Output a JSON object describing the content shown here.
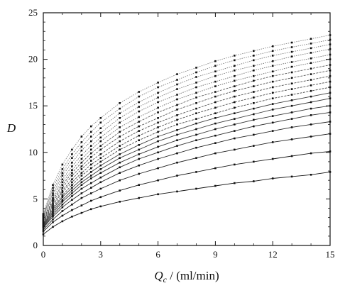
{
  "chart_data": {
    "type": "line",
    "ylabel": "D",
    "xlabel_var": "Q",
    "xlabel_sub": "c",
    "xlabel_unit": " / (ml/min)",
    "xlim": [
      0,
      15
    ],
    "ylim": [
      0,
      25
    ],
    "x_ticks": [
      0,
      3,
      6,
      9,
      12,
      15
    ],
    "y_ticks": [
      0,
      5,
      10,
      15,
      20,
      25
    ],
    "x_tick_labels": [
      "0",
      "3",
      "6",
      "9",
      "12",
      "15"
    ],
    "y_tick_labels": [
      "0",
      "5",
      "10",
      "15",
      "20",
      "25"
    ],
    "grid": false,
    "legend": "none",
    "x": [
      0,
      0.5,
      1,
      1.5,
      2,
      2.5,
      3,
      4,
      5,
      6,
      7,
      8,
      9,
      10,
      11,
      12,
      13,
      14,
      15
    ],
    "series": [
      {
        "values": [
          1.2,
          2.0,
          2.6,
          3.1,
          3.5,
          3.9,
          4.2,
          4.7,
          5.1,
          5.5,
          5.8,
          6.1,
          6.4,
          6.7,
          6.9,
          7.2,
          7.4,
          7.6,
          7.9
        ]
      },
      {
        "values": [
          1.5,
          2.5,
          3.2,
          3.8,
          4.3,
          4.8,
          5.2,
          5.9,
          6.5,
          7.0,
          7.5,
          7.9,
          8.3,
          8.7,
          9.0,
          9.3,
          9.6,
          9.9,
          10.1
        ]
      },
      {
        "values": [
          1.7,
          2.8,
          3.7,
          4.4,
          5.1,
          5.6,
          6.1,
          7.0,
          7.7,
          8.3,
          8.9,
          9.4,
          9.9,
          10.3,
          10.7,
          11.1,
          11.4,
          11.7,
          12.0
        ]
      },
      {
        "values": [
          1.9,
          3.1,
          4.1,
          4.9,
          5.6,
          6.2,
          6.8,
          7.8,
          8.6,
          9.3,
          9.9,
          10.5,
          11.0,
          11.5,
          11.9,
          12.3,
          12.7,
          13.0,
          13.3
        ]
      },
      {
        "values": [
          2.0,
          3.3,
          4.4,
          5.3,
          6.1,
          6.7,
          7.3,
          8.4,
          9.3,
          10.0,
          10.7,
          11.3,
          11.8,
          12.3,
          12.8,
          13.2,
          13.6,
          14.0,
          14.3
        ]
      },
      {
        "values": [
          2.1,
          3.5,
          4.7,
          5.6,
          6.5,
          7.2,
          7.8,
          8.9,
          9.8,
          10.6,
          11.3,
          11.9,
          12.5,
          13.0,
          13.5,
          13.9,
          14.3,
          14.7,
          15.0
        ]
      },
      {
        "values": [
          2.2,
          3.7,
          4.9,
          5.9,
          6.8,
          7.5,
          8.2,
          9.4,
          10.3,
          11.2,
          11.9,
          12.5,
          13.1,
          13.6,
          14.1,
          14.6,
          15.0,
          15.4,
          15.8
        ]
      },
      {
        "values": [
          2.3,
          3.9,
          5.2,
          6.2,
          7.1,
          7.9,
          8.6,
          9.8,
          10.8,
          11.7,
          12.4,
          13.1,
          13.7,
          14.2,
          14.7,
          15.2,
          15.6,
          16.0,
          16.4
        ]
      },
      {
        "values": [
          2.4,
          4.1,
          5.4,
          6.5,
          7.5,
          8.3,
          9.0,
          10.3,
          11.3,
          12.2,
          13.0,
          13.6,
          14.2,
          14.8,
          15.3,
          15.8,
          16.2,
          16.6,
          17.0
        ]
      },
      {
        "values": [
          2.5,
          4.3,
          5.7,
          6.8,
          7.8,
          8.7,
          9.4,
          10.7,
          11.8,
          12.7,
          13.5,
          14.2,
          14.8,
          15.4,
          15.9,
          16.4,
          16.8,
          17.2,
          17.6
        ]
      },
      {
        "values": [
          2.6,
          4.5,
          5.9,
          7.1,
          8.2,
          9.1,
          9.8,
          11.2,
          12.3,
          13.2,
          14.0,
          14.7,
          15.4,
          16.0,
          16.5,
          17.0,
          17.4,
          17.8,
          18.2
        ]
      },
      {
        "values": [
          2.7,
          4.7,
          6.2,
          7.5,
          8.5,
          9.5,
          10.3,
          11.7,
          12.8,
          13.7,
          14.6,
          15.3,
          16.0,
          16.6,
          17.1,
          17.6,
          18.0,
          18.4,
          18.8
        ]
      },
      {
        "values": [
          2.8,
          4.9,
          6.5,
          7.8,
          8.9,
          9.9,
          10.7,
          12.2,
          13.3,
          14.3,
          15.1,
          15.9,
          16.5,
          17.1,
          17.7,
          18.2,
          18.6,
          19.0,
          19.4
        ]
      },
      {
        "values": [
          2.9,
          5.1,
          6.8,
          8.1,
          9.3,
          10.3,
          11.2,
          12.7,
          13.8,
          14.8,
          15.7,
          16.4,
          17.1,
          17.7,
          18.2,
          18.7,
          19.2,
          19.6,
          20.0
        ]
      },
      {
        "values": [
          3.0,
          5.4,
          7.1,
          8.5,
          9.7,
          10.7,
          11.6,
          13.2,
          14.4,
          15.4,
          16.2,
          17.0,
          17.6,
          18.2,
          18.8,
          19.3,
          19.7,
          20.1,
          20.5
        ]
      },
      {
        "values": [
          3.1,
          5.6,
          7.5,
          8.9,
          10.2,
          11.2,
          12.1,
          13.7,
          14.9,
          15.9,
          16.8,
          17.5,
          18.2,
          18.8,
          19.3,
          19.8,
          20.3,
          20.7,
          21.1
        ]
      },
      {
        "values": [
          3.2,
          5.9,
          7.8,
          9.4,
          10.6,
          11.7,
          12.6,
          14.2,
          15.4,
          16.4,
          17.3,
          18.1,
          18.7,
          19.3,
          19.9,
          20.4,
          20.8,
          21.2,
          21.6
        ]
      },
      {
        "values": [
          3.3,
          6.2,
          8.2,
          9.8,
          11.1,
          12.2,
          13.2,
          14.7,
          16.0,
          17.0,
          17.8,
          18.6,
          19.3,
          19.9,
          20.4,
          20.9,
          21.3,
          21.7,
          22.1
        ]
      },
      {
        "values": [
          3.4,
          6.5,
          8.7,
          10.3,
          11.7,
          12.8,
          13.7,
          15.3,
          16.5,
          17.5,
          18.4,
          19.1,
          19.8,
          20.4,
          20.9,
          21.4,
          21.8,
          22.2,
          22.6
        ]
      }
    ]
  }
}
